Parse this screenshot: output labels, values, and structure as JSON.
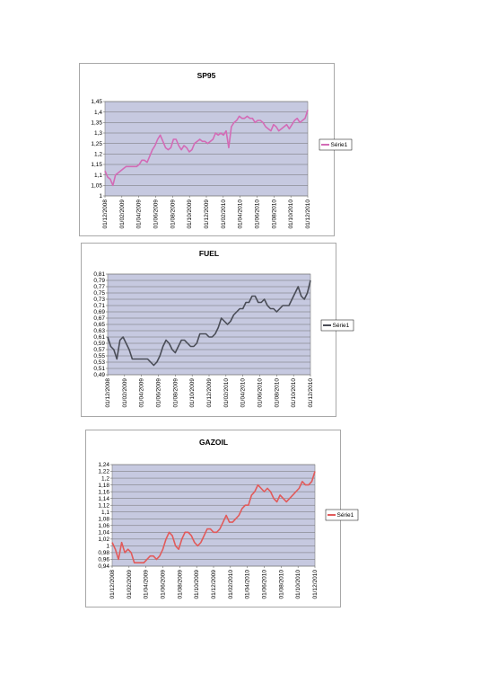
{
  "chart_data": [
    {
      "type": "line",
      "title": "SP95",
      "xlabel": "",
      "ylabel": "",
      "color": "#d36bb6",
      "ylim": [
        1,
        1.45
      ],
      "ystep": 0.05,
      "y_ticks": [
        "1,45",
        "1,4",
        "1,35",
        "1,3",
        "1,25",
        "1,2",
        "1,15",
        "1,1",
        "1,05",
        "1"
      ],
      "x_ticks": [
        "01/12/2008",
        "01/02/2009",
        "01/04/2009",
        "01/06/2009",
        "01/08/2009",
        "01/10/2009",
        "01/12/2009",
        "01/02/2010",
        "01/04/2010",
        "01/06/2010",
        "01/08/2010",
        "01/10/2010",
        "01/12/2010"
      ],
      "grid": true,
      "legend_position": "right",
      "series": [
        {
          "name": "Série1",
          "values": [
            1.12,
            1.09,
            1.08,
            1.05,
            1.1,
            1.11,
            1.12,
            1.13,
            1.14,
            1.14,
            1.14,
            1.14,
            1.14,
            1.15,
            1.17,
            1.17,
            1.16,
            1.19,
            1.22,
            1.24,
            1.27,
            1.29,
            1.26,
            1.23,
            1.22,
            1.23,
            1.27,
            1.27,
            1.24,
            1.22,
            1.24,
            1.23,
            1.21,
            1.22,
            1.25,
            1.26,
            1.27,
            1.26,
            1.26,
            1.25,
            1.26,
            1.27,
            1.3,
            1.29,
            1.3,
            1.29,
            1.31,
            1.23,
            1.33,
            1.35,
            1.36,
            1.38,
            1.37,
            1.37,
            1.38,
            1.37,
            1.37,
            1.35,
            1.36,
            1.36,
            1.35,
            1.33,
            1.32,
            1.31,
            1.34,
            1.33,
            1.31,
            1.32,
            1.33,
            1.34,
            1.32,
            1.34,
            1.36,
            1.37,
            1.35,
            1.36,
            1.37,
            1.41
          ]
        }
      ]
    },
    {
      "type": "line",
      "title": "FUEL",
      "xlabel": "",
      "ylabel": "",
      "color": "#4a4d57",
      "ylim": [
        0.49,
        0.81
      ],
      "ystep": 0.02,
      "y_ticks": [
        "0,81",
        "0,79",
        "0,77",
        "0,75",
        "0,73",
        "0,71",
        "0,69",
        "0,67",
        "0,65",
        "0,63",
        "0,61",
        "0,59",
        "0,57",
        "0,55",
        "0,53",
        "0,51",
        "0,49"
      ],
      "x_ticks": [
        "01/12/2008",
        "01/02/2009",
        "01/04/2009",
        "01/06/2009",
        "01/08/2009",
        "01/10/2009",
        "01/12/2009",
        "01/02/2010",
        "01/04/2010",
        "01/06/2010",
        "01/08/2010",
        "01/10/2010",
        "01/12/2010"
      ],
      "grid": true,
      "legend_position": "right",
      "series": [
        {
          "name": "Série1",
          "values": [
            0.61,
            0.58,
            0.57,
            0.54,
            0.6,
            0.61,
            0.59,
            0.57,
            0.54,
            0.54,
            0.54,
            0.54,
            0.54,
            0.54,
            0.53,
            0.52,
            0.53,
            0.55,
            0.58,
            0.6,
            0.59,
            0.57,
            0.56,
            0.58,
            0.6,
            0.6,
            0.59,
            0.58,
            0.58,
            0.59,
            0.62,
            0.62,
            0.62,
            0.61,
            0.61,
            0.62,
            0.64,
            0.67,
            0.66,
            0.65,
            0.66,
            0.68,
            0.69,
            0.7,
            0.7,
            0.72,
            0.72,
            0.74,
            0.74,
            0.72,
            0.72,
            0.73,
            0.71,
            0.7,
            0.7,
            0.69,
            0.7,
            0.71,
            0.71,
            0.71,
            0.73,
            0.75,
            0.77,
            0.74,
            0.73,
            0.75,
            0.79
          ]
        }
      ]
    },
    {
      "type": "line",
      "title": "GAZOIL",
      "xlabel": "",
      "ylabel": "",
      "color": "#e15b5b",
      "ylim": [
        0.94,
        1.24
      ],
      "ystep": 0.02,
      "y_ticks": [
        "1,24",
        "1,22",
        "1,2",
        "1,18",
        "1,16",
        "1,14",
        "1,12",
        "1,1",
        "1,08",
        "1,06",
        "1,04",
        "1,02",
        "1",
        "0,98",
        "0,96",
        "0,94"
      ],
      "x_ticks": [
        "01/12/2008",
        "01/02/2009",
        "01/04/2009",
        "01/06/2009",
        "01/08/2009",
        "01/10/2009",
        "01/12/2009",
        "01/02/2010",
        "01/04/2010",
        "01/06/2010",
        "01/08/2010",
        "01/10/2010",
        "01/12/2010"
      ],
      "grid": true,
      "legend_position": "right",
      "series": [
        {
          "name": "Série1",
          "values": [
            1.01,
            0.99,
            0.96,
            1.01,
            0.98,
            0.99,
            0.98,
            0.95,
            0.95,
            0.95,
            0.95,
            0.96,
            0.97,
            0.97,
            0.96,
            0.97,
            0.99,
            1.02,
            1.04,
            1.03,
            1.0,
            0.99,
            1.02,
            1.04,
            1.04,
            1.03,
            1.01,
            1.0,
            1.01,
            1.03,
            1.05,
            1.05,
            1.04,
            1.04,
            1.05,
            1.07,
            1.09,
            1.07,
            1.07,
            1.08,
            1.09,
            1.11,
            1.12,
            1.12,
            1.15,
            1.16,
            1.18,
            1.17,
            1.16,
            1.17,
            1.16,
            1.14,
            1.13,
            1.15,
            1.14,
            1.13,
            1.14,
            1.15,
            1.16,
            1.17,
            1.19,
            1.18,
            1.18,
            1.19,
            1.22
          ]
        }
      ]
    }
  ]
}
